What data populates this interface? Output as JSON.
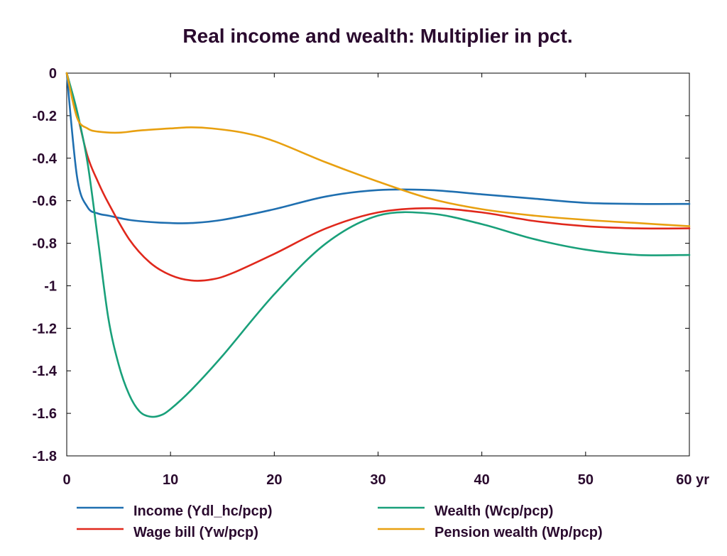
{
  "chart_data": {
    "type": "line",
    "title": "Real income and wealth: Multiplier in pct.",
    "xlabel": "",
    "ylabel": "",
    "xlim": [
      0,
      60
    ],
    "ylim": [
      -1.8,
      0
    ],
    "x_ticks": [
      0,
      10,
      20,
      30,
      40,
      50,
      60
    ],
    "x_tick_labels": [
      "0",
      "10",
      "20",
      "30",
      "40",
      "50",
      "60 yr"
    ],
    "y_ticks": [
      0,
      -0.2,
      -0.4,
      -0.6,
      -0.8,
      -1,
      -1.2,
      -1.4,
      -1.6,
      -1.8
    ],
    "y_tick_labels": [
      "0",
      "-0.2",
      "-0.4",
      "-0.6",
      "-0.8",
      "-1",
      "-1.2",
      "-1.4",
      "-1.6",
      "-1.8"
    ],
    "grid": false,
    "legend_position": "bottom",
    "series": [
      {
        "name": "Income (Ydl_hc/pcp)",
        "color": "#1f6fb0",
        "x": [
          0,
          1,
          2,
          3,
          4,
          6,
          8,
          10,
          12,
          15,
          20,
          25,
          30,
          35,
          40,
          45,
          50,
          55,
          60
        ],
        "y": [
          0,
          -0.49,
          -0.63,
          -0.66,
          -0.67,
          -0.69,
          -0.7,
          -0.705,
          -0.705,
          -0.69,
          -0.64,
          -0.58,
          -0.55,
          -0.55,
          -0.57,
          -0.59,
          -0.61,
          -0.615,
          -0.615
        ]
      },
      {
        "name": "Wage bill (Yw/pcp)",
        "color": "#e0281c",
        "x": [
          0,
          1,
          2,
          3,
          4,
          6,
          8,
          10,
          12,
          14,
          16,
          20,
          25,
          30,
          35,
          40,
          45,
          50,
          55,
          60
        ],
        "y": [
          0,
          -0.19,
          -0.39,
          -0.51,
          -0.61,
          -0.78,
          -0.89,
          -0.95,
          -0.975,
          -0.97,
          -0.94,
          -0.85,
          -0.73,
          -0.655,
          -0.635,
          -0.655,
          -0.695,
          -0.72,
          -0.73,
          -0.73
        ]
      },
      {
        "name": "Wealth (Wcp/pcp)",
        "color": "#19a07a",
        "x": [
          0,
          1,
          2,
          3,
          4,
          5,
          6,
          7,
          8,
          9,
          10,
          12,
          15,
          20,
          25,
          30,
          35,
          40,
          45,
          50,
          55,
          60
        ],
        "y": [
          0,
          -0.18,
          -0.42,
          -0.78,
          -1.15,
          -1.37,
          -1.51,
          -1.59,
          -1.615,
          -1.61,
          -1.58,
          -1.49,
          -1.33,
          -1.04,
          -0.8,
          -0.67,
          -0.66,
          -0.71,
          -0.78,
          -0.83,
          -0.855,
          -0.855
        ]
      },
      {
        "name": "Pension wealth (Wp/pcp)",
        "color": "#e8a010",
        "x": [
          0,
          1,
          2,
          3,
          5,
          7,
          10,
          12,
          14,
          17,
          20,
          25,
          30,
          35,
          40,
          45,
          50,
          55,
          60
        ],
        "y": [
          0,
          -0.21,
          -0.26,
          -0.275,
          -0.28,
          -0.27,
          -0.26,
          -0.255,
          -0.26,
          -0.28,
          -0.32,
          -0.42,
          -0.51,
          -0.59,
          -0.64,
          -0.67,
          -0.69,
          -0.705,
          -0.72
        ]
      }
    ]
  }
}
